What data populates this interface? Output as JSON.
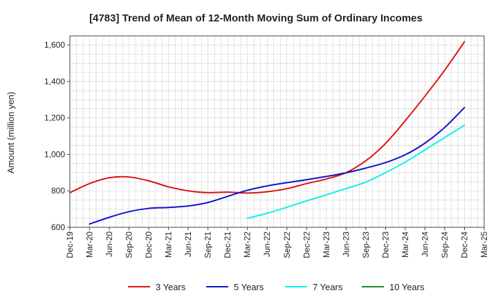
{
  "chart_data": {
    "type": "line",
    "title": "[4783]  Trend of Mean of 12-Month Moving Sum of Ordinary Incomes",
    "xlabel": "",
    "ylabel": "Amount (million yen)",
    "ylim": [
      600,
      1650
    ],
    "yticks": [
      600,
      800,
      1000,
      1200,
      1400,
      1600
    ],
    "ytick_labels": [
      "600",
      "800",
      "1,000",
      "1,200",
      "1,400",
      "1,600"
    ],
    "grid": true,
    "legend_position": "bottom",
    "categories": [
      "Dec-19",
      "Mar-20",
      "Jun-20",
      "Sep-20",
      "Dec-20",
      "Mar-21",
      "Jun-21",
      "Sep-21",
      "Dec-21",
      "Mar-22",
      "Jun-22",
      "Sep-22",
      "Dec-22",
      "Mar-23",
      "Jun-23",
      "Sep-23",
      "Dec-23",
      "Mar-24",
      "Jun-24",
      "Sep-24",
      "Dec-24",
      "Mar-25"
    ],
    "series": [
      {
        "name": "3 Years",
        "color": "#dd1111",
        "values": [
          790,
          840,
          872,
          876,
          855,
          822,
          800,
          790,
          793,
          788,
          795,
          812,
          840,
          865,
          900,
          965,
          1060,
          1185,
          1320,
          1462,
          1618,
          null
        ]
      },
      {
        "name": "5 Years",
        "color": "#1111cc",
        "values": [
          null,
          618,
          655,
          686,
          704,
          709,
          717,
          736,
          770,
          803,
          827,
          845,
          861,
          879,
          899,
          925,
          955,
          998,
          1062,
          1148,
          1257,
          null
        ]
      },
      {
        "name": "7 Years",
        "color": "#11eeee",
        "values": [
          null,
          null,
          null,
          null,
          null,
          null,
          null,
          null,
          null,
          650,
          677,
          710,
          745,
          778,
          812,
          848,
          900,
          958,
          1025,
          1093,
          1160,
          null
        ]
      },
      {
        "name": "10 Years",
        "color": "#228822",
        "values": [
          null,
          null,
          null,
          null,
          null,
          null,
          null,
          null,
          null,
          null,
          null,
          null,
          null,
          null,
          null,
          null,
          null,
          null,
          null,
          null,
          null,
          null
        ]
      }
    ]
  }
}
